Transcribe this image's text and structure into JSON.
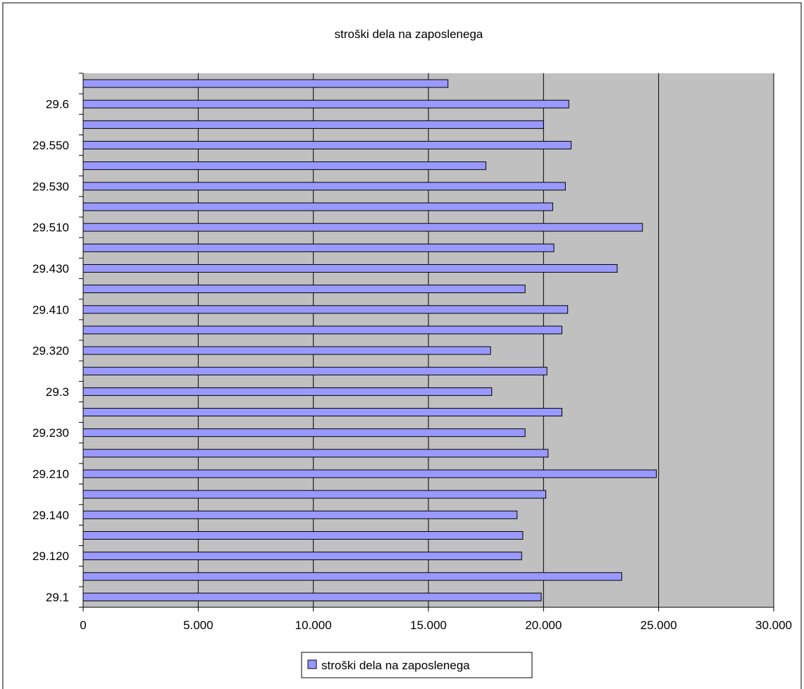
{
  "chart_data": {
    "type": "bar",
    "orientation": "horizontal",
    "title": "stroški dela na zaposlenega",
    "xlabel": "",
    "ylabel": "",
    "xlim": [
      0,
      30000
    ],
    "x_ticks": [
      0,
      5000,
      10000,
      15000,
      20000,
      25000,
      30000
    ],
    "x_tick_labels": [
      "0",
      "5.000",
      "10.000",
      "15.000",
      "20.000",
      "25.000",
      "30.000"
    ],
    "grid": true,
    "legend_position": "bottom",
    "categories": [
      "29.1",
      "",
      "29.120",
      "",
      "29.140",
      "",
      "29.210",
      "",
      "29.230",
      "",
      "29.3",
      "",
      "29.320",
      "",
      "29.410",
      "",
      "29.430",
      "",
      "29.510",
      "",
      "29.530",
      "",
      "29.550",
      "",
      "29.6",
      ""
    ],
    "series": [
      {
        "name": "stroški dela na zaposlenega",
        "color": "#9999ff",
        "values": [
          19900,
          23400,
          19050,
          19100,
          18850,
          20100,
          24900,
          20200,
          19200,
          20800,
          17750,
          20150,
          17700,
          20800,
          21050,
          19200,
          23200,
          20450,
          24300,
          20400,
          20950,
          17500,
          21200,
          20000,
          21100,
          15850
        ]
      }
    ]
  },
  "colors": {
    "plot_background": "#c0c0c0",
    "bar_fill": "#9999ff",
    "bar_stroke": "#000000",
    "gridline": "#000000"
  }
}
